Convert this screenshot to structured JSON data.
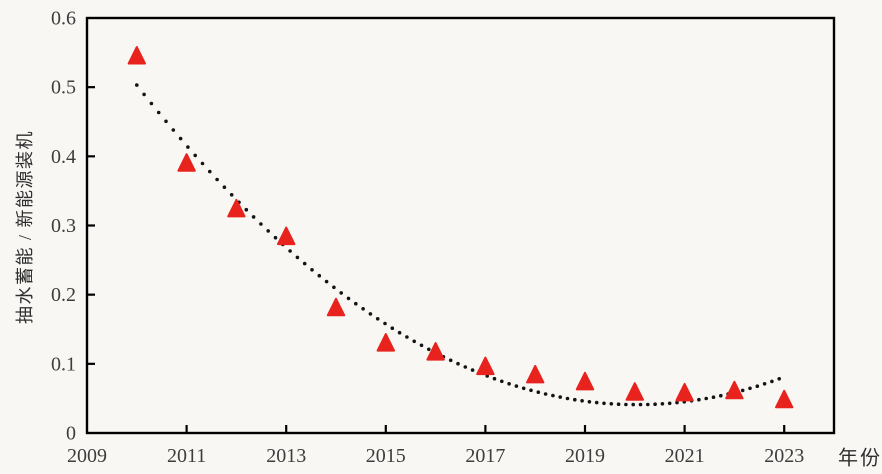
{
  "chart_data": {
    "type": "scatter",
    "title": "",
    "xlabel": "年份",
    "ylabel": "抽水蓄能 / 新能源装机",
    "xlim": [
      2009,
      2024
    ],
    "ylim": [
      0,
      0.6
    ],
    "x_ticks": [
      2009,
      2011,
      2013,
      2015,
      2017,
      2019,
      2021,
      2023
    ],
    "y_ticks": [
      0,
      0.1,
      0.2,
      0.3,
      0.4,
      0.5,
      0.6
    ],
    "y_tick_labels": [
      "0",
      "0.1",
      "0.2",
      "0.3",
      "0.4",
      "0.5",
      "0.6"
    ],
    "grid": false,
    "legend": false,
    "series": [
      {
        "marker": "triangle",
        "color": "#e8231e",
        "x": [
          2010,
          2011,
          2012,
          2013,
          2014,
          2015,
          2016,
          2017,
          2018,
          2019,
          2020,
          2021,
          2022,
          2023
        ],
        "y": [
          0.545,
          0.39,
          0.324,
          0.284,
          0.181,
          0.13,
          0.117,
          0.096,
          0.084,
          0.074,
          0.059,
          0.058,
          0.061,
          0.048
        ]
      }
    ],
    "trendline": {
      "style": "dotted",
      "color": "#141414",
      "model": "quadratic",
      "note": "y = a*(t-2010)^2 + b*(t-2010) + c",
      "coefficients": {
        "a": 0.00458,
        "b": -0.092,
        "c": 0.503
      },
      "u_origin": 2010,
      "t_start": 2010.0,
      "t_end": 2022.9
    },
    "colors": {
      "frame": "#000000",
      "tick_label": "#3d3d3d",
      "marker": "#e8231e",
      "trendline_dot": "#141414",
      "background": "#f8f7f4"
    }
  }
}
